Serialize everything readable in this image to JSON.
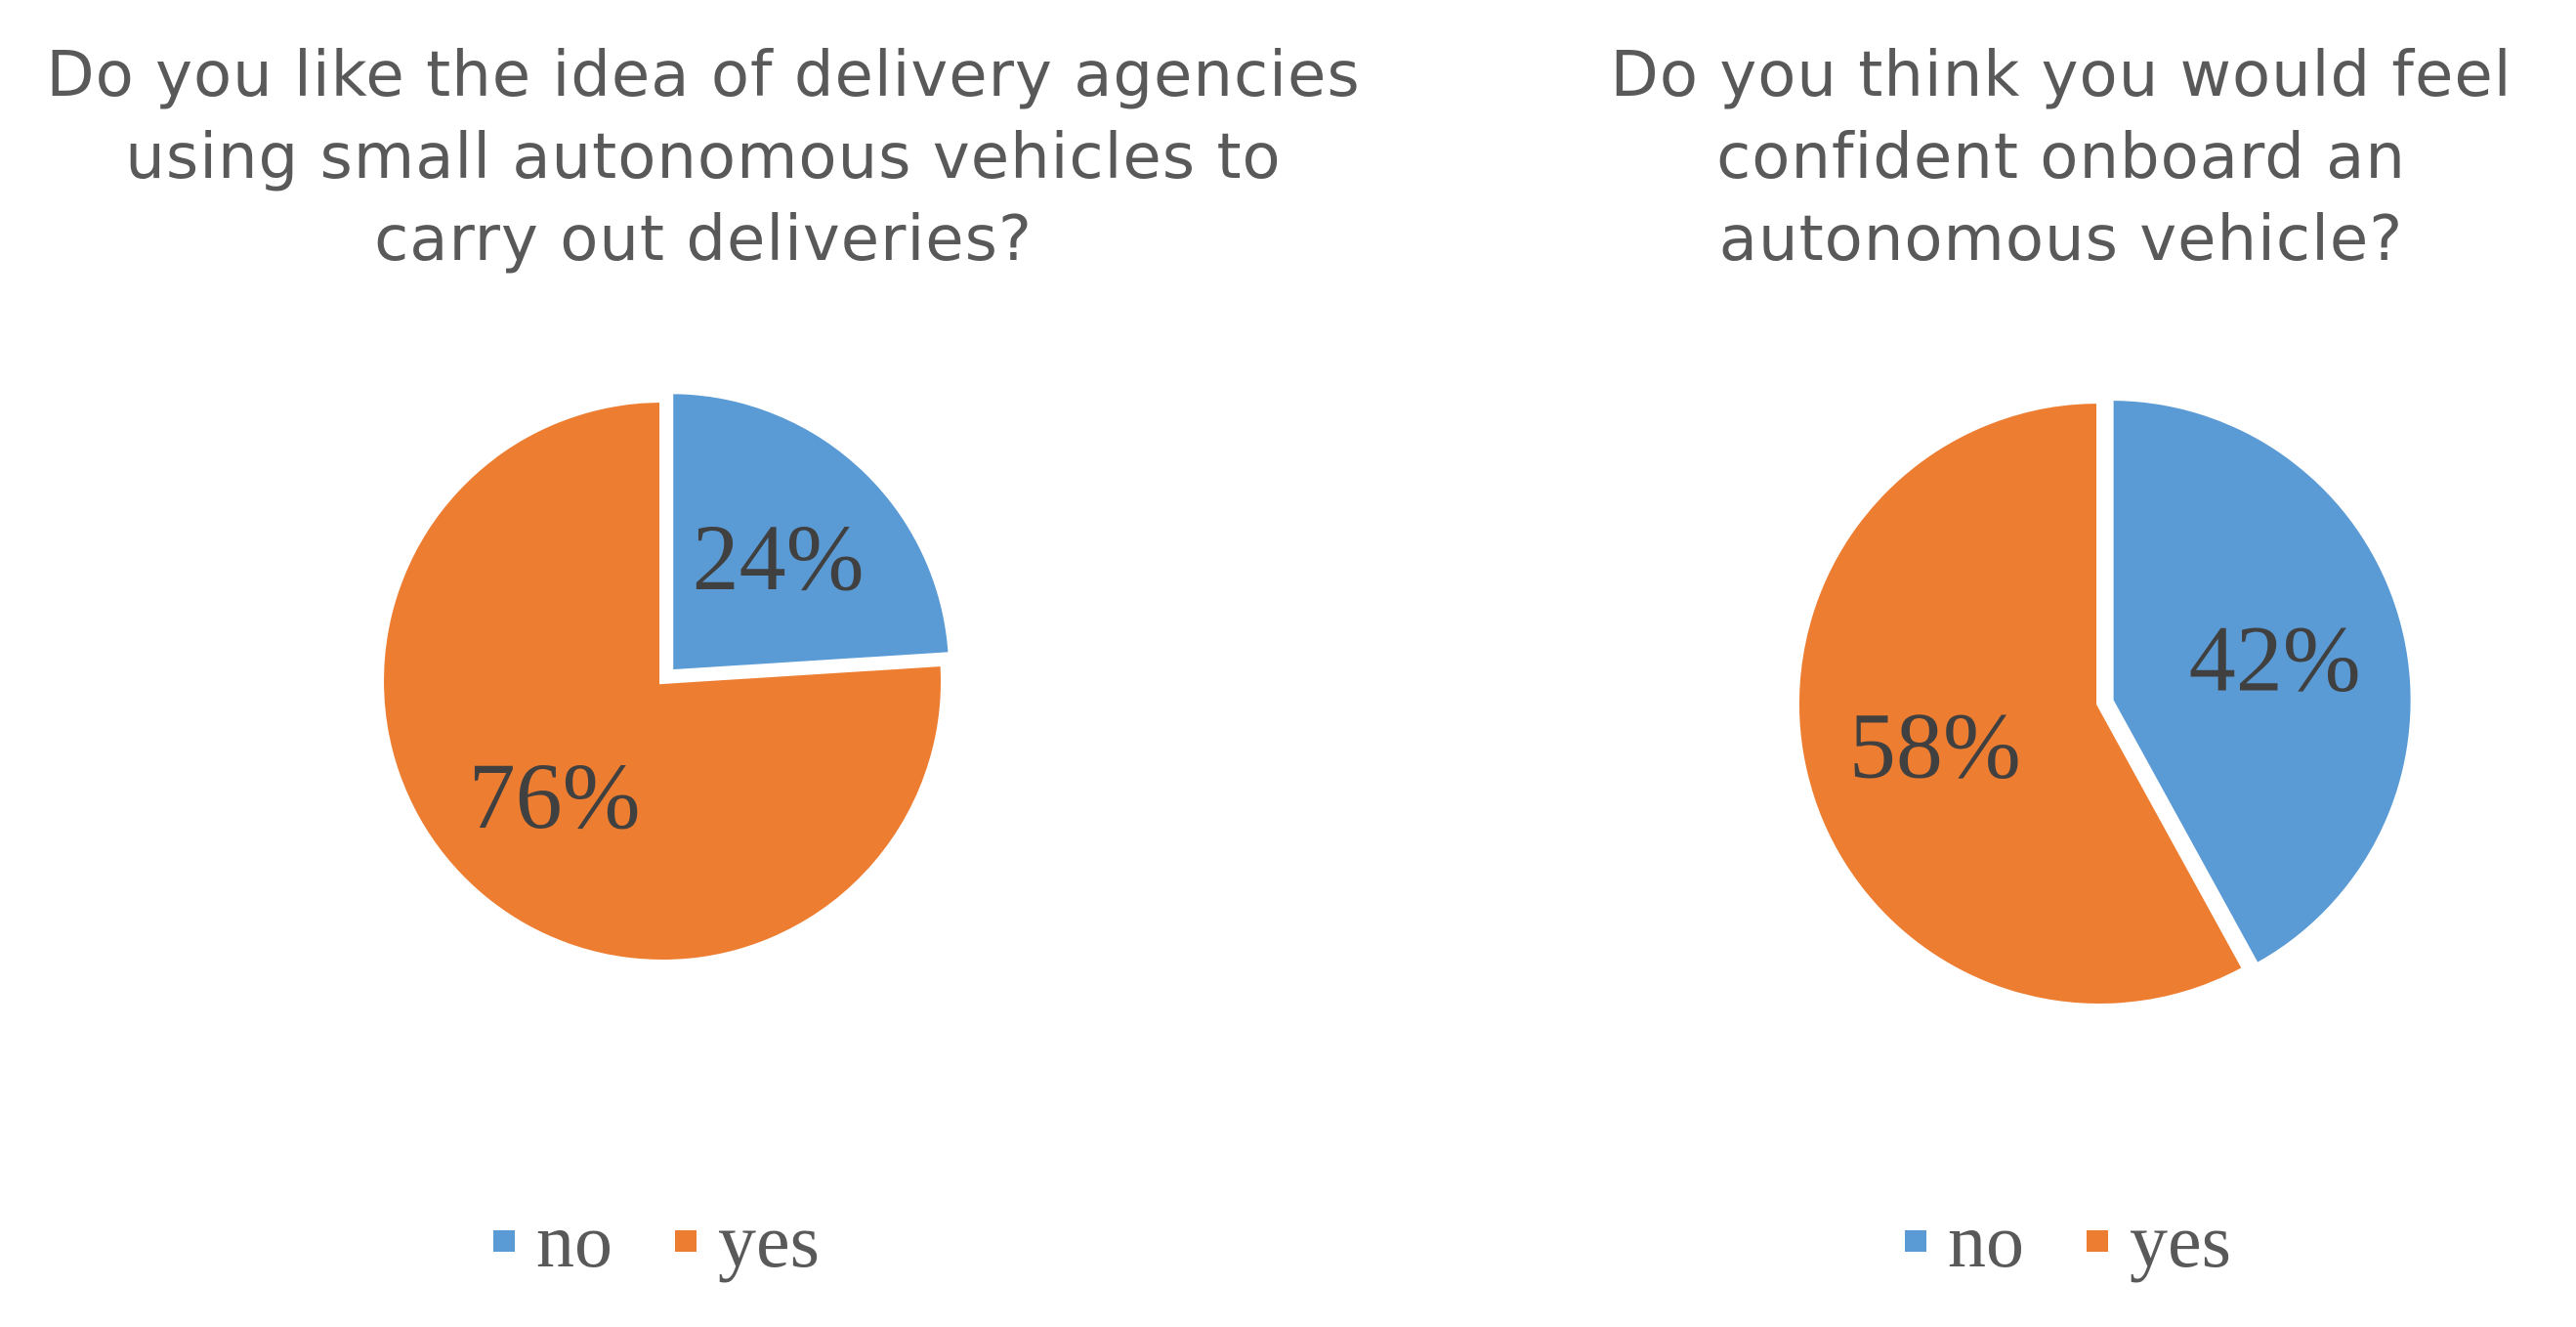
{
  "chart_data": [
    {
      "type": "pie",
      "title_lines": [
        "Do you like the idea of delivery agencies",
        "using small autonomous vehicles to",
        "carry out deliveries?"
      ],
      "categories": [
        "no",
        "yes"
      ],
      "values": [
        24,
        76
      ],
      "data_labels": [
        "24%",
        "76%"
      ],
      "colors": [
        "#5B9BD5",
        "#ED7D31"
      ],
      "legend_position": "bottom"
    },
    {
      "type": "pie",
      "title_lines": [
        "Do you think you would feel",
        "confident onboard an",
        "autonomous vehicle?"
      ],
      "categories": [
        "no",
        "yes"
      ],
      "values": [
        42,
        58
      ],
      "data_labels": [
        "42%",
        "58%"
      ],
      "colors": [
        "#5B9BD5",
        "#ED7D31"
      ],
      "legend_position": "bottom"
    }
  ]
}
